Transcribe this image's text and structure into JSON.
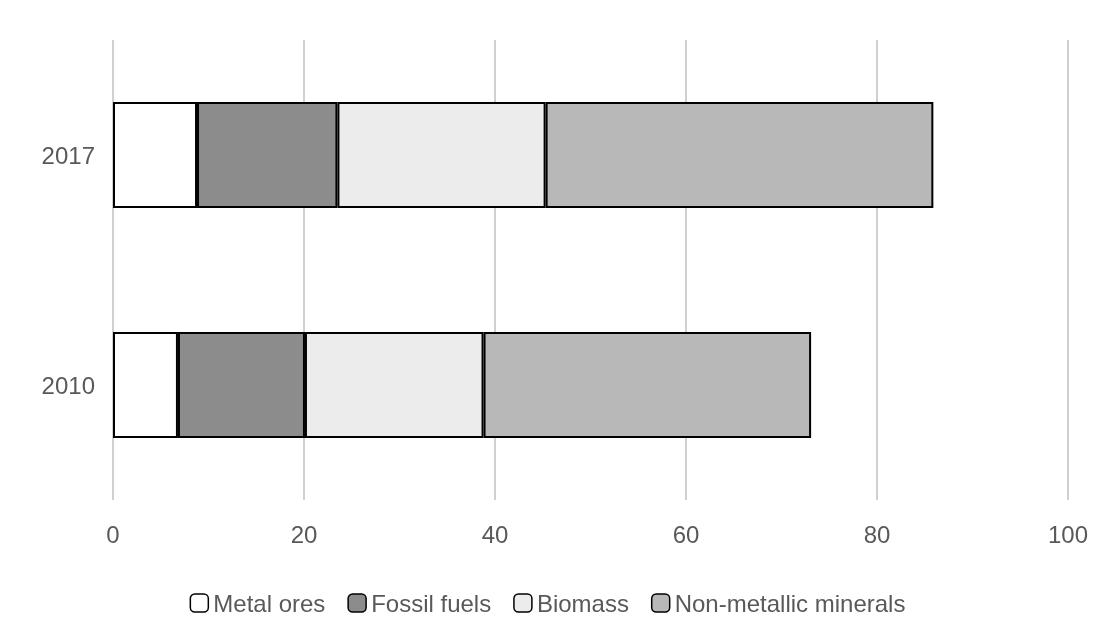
{
  "chart_data": {
    "type": "bar",
    "orientation": "horizontal",
    "stacked": true,
    "categories": [
      "2017",
      "2010"
    ],
    "series": [
      {
        "name": "Metal ores",
        "color": "#ffffff",
        "values": [
          8.8,
          6.8
        ]
      },
      {
        "name": "Fossil fuels",
        "color": "#8c8c8c",
        "values": [
          14.7,
          13.3
        ]
      },
      {
        "name": "Biomass",
        "color": "#ececec",
        "values": [
          21.8,
          18.7
        ]
      },
      {
        "name": "Non-metallic minerals",
        "color": "#b8b8b8",
        "values": [
          40.6,
          34.3
        ]
      }
    ],
    "xlim": [
      0,
      100
    ],
    "xticks": [
      0,
      20,
      40,
      60,
      80,
      100
    ],
    "grid": "x",
    "legend": "bottom"
  }
}
